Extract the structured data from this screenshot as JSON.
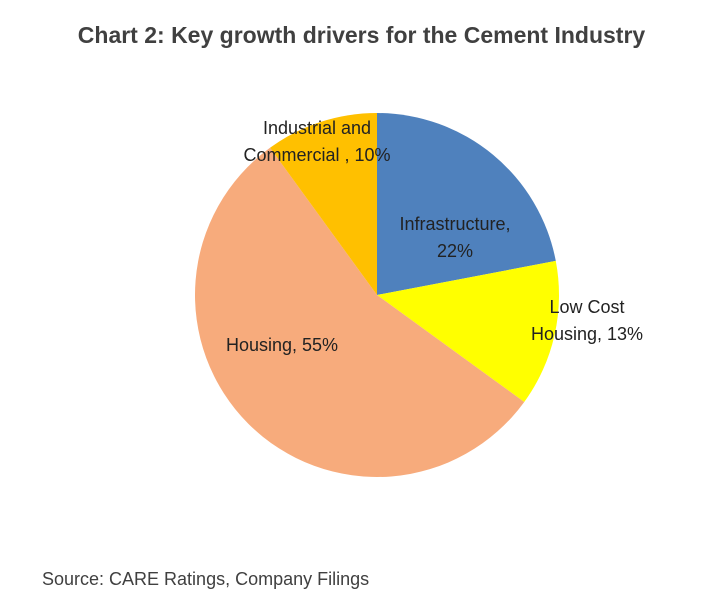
{
  "chart_data": {
    "type": "pie",
    "title": "Chart 2: Key growth drivers for the Cement Industry",
    "source": "Source: CARE Ratings, Company Filings",
    "start_angle": "12 o'clock, clockwise",
    "slices": [
      {
        "label_lines": [
          "Infrastructure,",
          "22%"
        ],
        "name": "Infrastructure",
        "value": 22,
        "color": "#4f81bd"
      },
      {
        "label_lines": [
          "Low Cost",
          "Housing, 13%"
        ],
        "name": "Low Cost Housing",
        "value": 13,
        "color": "#ffff00"
      },
      {
        "label_lines": [
          "Housing, 55%"
        ],
        "name": "Housing",
        "value": 55,
        "color": "#f7ab7c"
      },
      {
        "label_lines": [
          "Industrial and",
          "Commercial , 10%"
        ],
        "name": "Industrial and Commercial",
        "value": 10,
        "color": "#ffc000"
      }
    ]
  }
}
